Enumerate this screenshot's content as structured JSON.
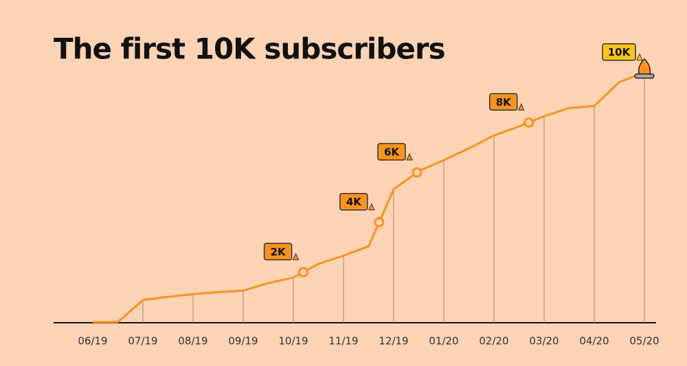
{
  "chart_data": {
    "type": "line",
    "title": "The first 10K subscribers",
    "categories": [
      "06/19",
      null,
      "07/19",
      null,
      "08/19",
      null,
      "09/19",
      null,
      "10/19",
      null,
      "11/19",
      null,
      "12/19",
      null,
      "01/20",
      null,
      "02/20",
      null,
      "03/20",
      null,
      "04/20",
      null,
      "05/20"
    ],
    "series": [
      {
        "name": "Subscribers",
        "color": "#f7931e",
        "values": [
          0,
          0,
          880,
          1010,
          1120,
          1200,
          1260,
          1560,
          1780,
          2330,
          2660,
          3040,
          5320,
          6050,
          6490,
          6960,
          7480,
          7840,
          8250,
          8580,
          8660,
          9620,
          10000
        ]
      }
    ],
    "ylim": [
      0,
      12800
    ],
    "grid": true,
    "milestones": [
      {
        "label": "2K",
        "value": 2000,
        "color": "#f7931e"
      },
      {
        "label": "4K",
        "value": 4000,
        "color": "#f7931e"
      },
      {
        "label": "6K",
        "value": 6000,
        "color": "#f7931e"
      },
      {
        "label": "8K",
        "value": 8000,
        "color": "#f7931e"
      },
      {
        "label": "10K",
        "value": 10000,
        "color": "#fcc419"
      }
    ]
  }
}
